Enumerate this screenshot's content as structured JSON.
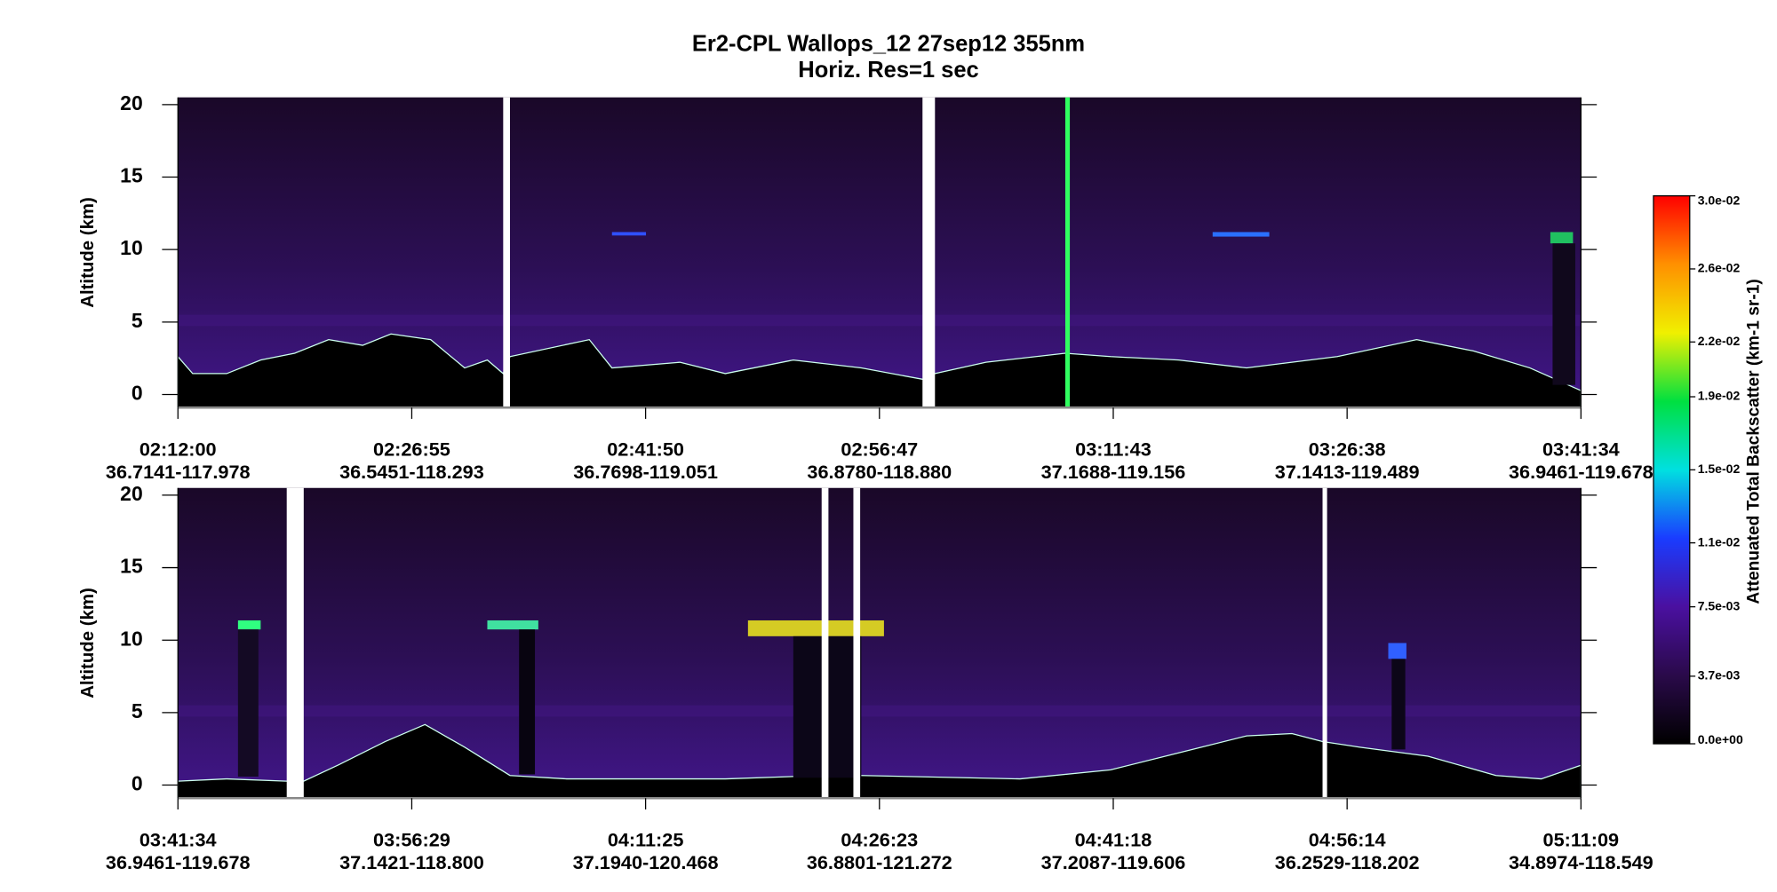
{
  "chart_data": {
    "type": "curtain",
    "title": "Er2-CPL  Wallops_12  27sep12  355nm",
    "subtitle": "Horiz. Res=1 sec",
    "panels": [
      {
        "ylabel": "Altitude (km)",
        "ylim": [
          -0.9,
          20.5
        ],
        "yticks": [
          0,
          5,
          10,
          15,
          20
        ],
        "x_labels": [
          {
            "time": "02:12:00",
            "location": "36.7141-117.978"
          },
          {
            "time": "02:26:55",
            "location": "36.5451-118.293"
          },
          {
            "time": "02:41:50",
            "location": "36.7698-119.051"
          },
          {
            "time": "02:56:47",
            "location": "36.8780-118.880"
          },
          {
            "time": "03:11:43",
            "location": "37.1688-119.156"
          },
          {
            "time": "03:26:38",
            "location": "37.1413-119.489"
          },
          {
            "time": "03:41:34",
            "location": "36.9461-119.678"
          }
        ]
      },
      {
        "ylabel": "Altitude (km)",
        "ylim": [
          -0.9,
          20.5
        ],
        "yticks": [
          0,
          5,
          10,
          15,
          20
        ],
        "x_labels": [
          {
            "time": "03:41:34",
            "location": "36.9461-119.678"
          },
          {
            "time": "03:56:29",
            "location": "37.1421-118.800"
          },
          {
            "time": "04:11:25",
            "location": "37.1940-120.468"
          },
          {
            "time": "04:26:23",
            "location": "36.8801-121.272"
          },
          {
            "time": "04:41:18",
            "location": "37.2087-119.606"
          },
          {
            "time": "04:56:14",
            "location": "36.2529-118.202"
          },
          {
            "time": "05:11:09",
            "location": "34.8974-118.549"
          }
        ]
      }
    ],
    "colorbar": {
      "label": "Attenuated Total Backscatter (km-1 sr-1)",
      "lim": [
        0,
        0.03
      ],
      "colors": [
        "#000000",
        "#2a0a4a",
        "#4a10a0",
        "#1a3cff",
        "#00e0e0",
        "#00e040",
        "#f0f000",
        "#ff9000",
        "#ff0000"
      ],
      "ticks": [
        {
          "value": 0.03,
          "label": "3.0e-02"
        },
        {
          "value": 0.026,
          "label": "2.6e-02"
        },
        {
          "value": 0.022,
          "label": "2.2e-02"
        },
        {
          "value": 0.019,
          "label": "1.9e-02"
        },
        {
          "value": 0.015,
          "label": "1.5e-02"
        },
        {
          "value": 0.011,
          "label": "1.1e-02"
        },
        {
          "value": 0.0075,
          "label": "7.5e-03"
        },
        {
          "value": 0.0037,
          "label": "3.7e-03"
        },
        {
          "value": 0,
          "label": "0.0e+00"
        }
      ]
    }
  }
}
